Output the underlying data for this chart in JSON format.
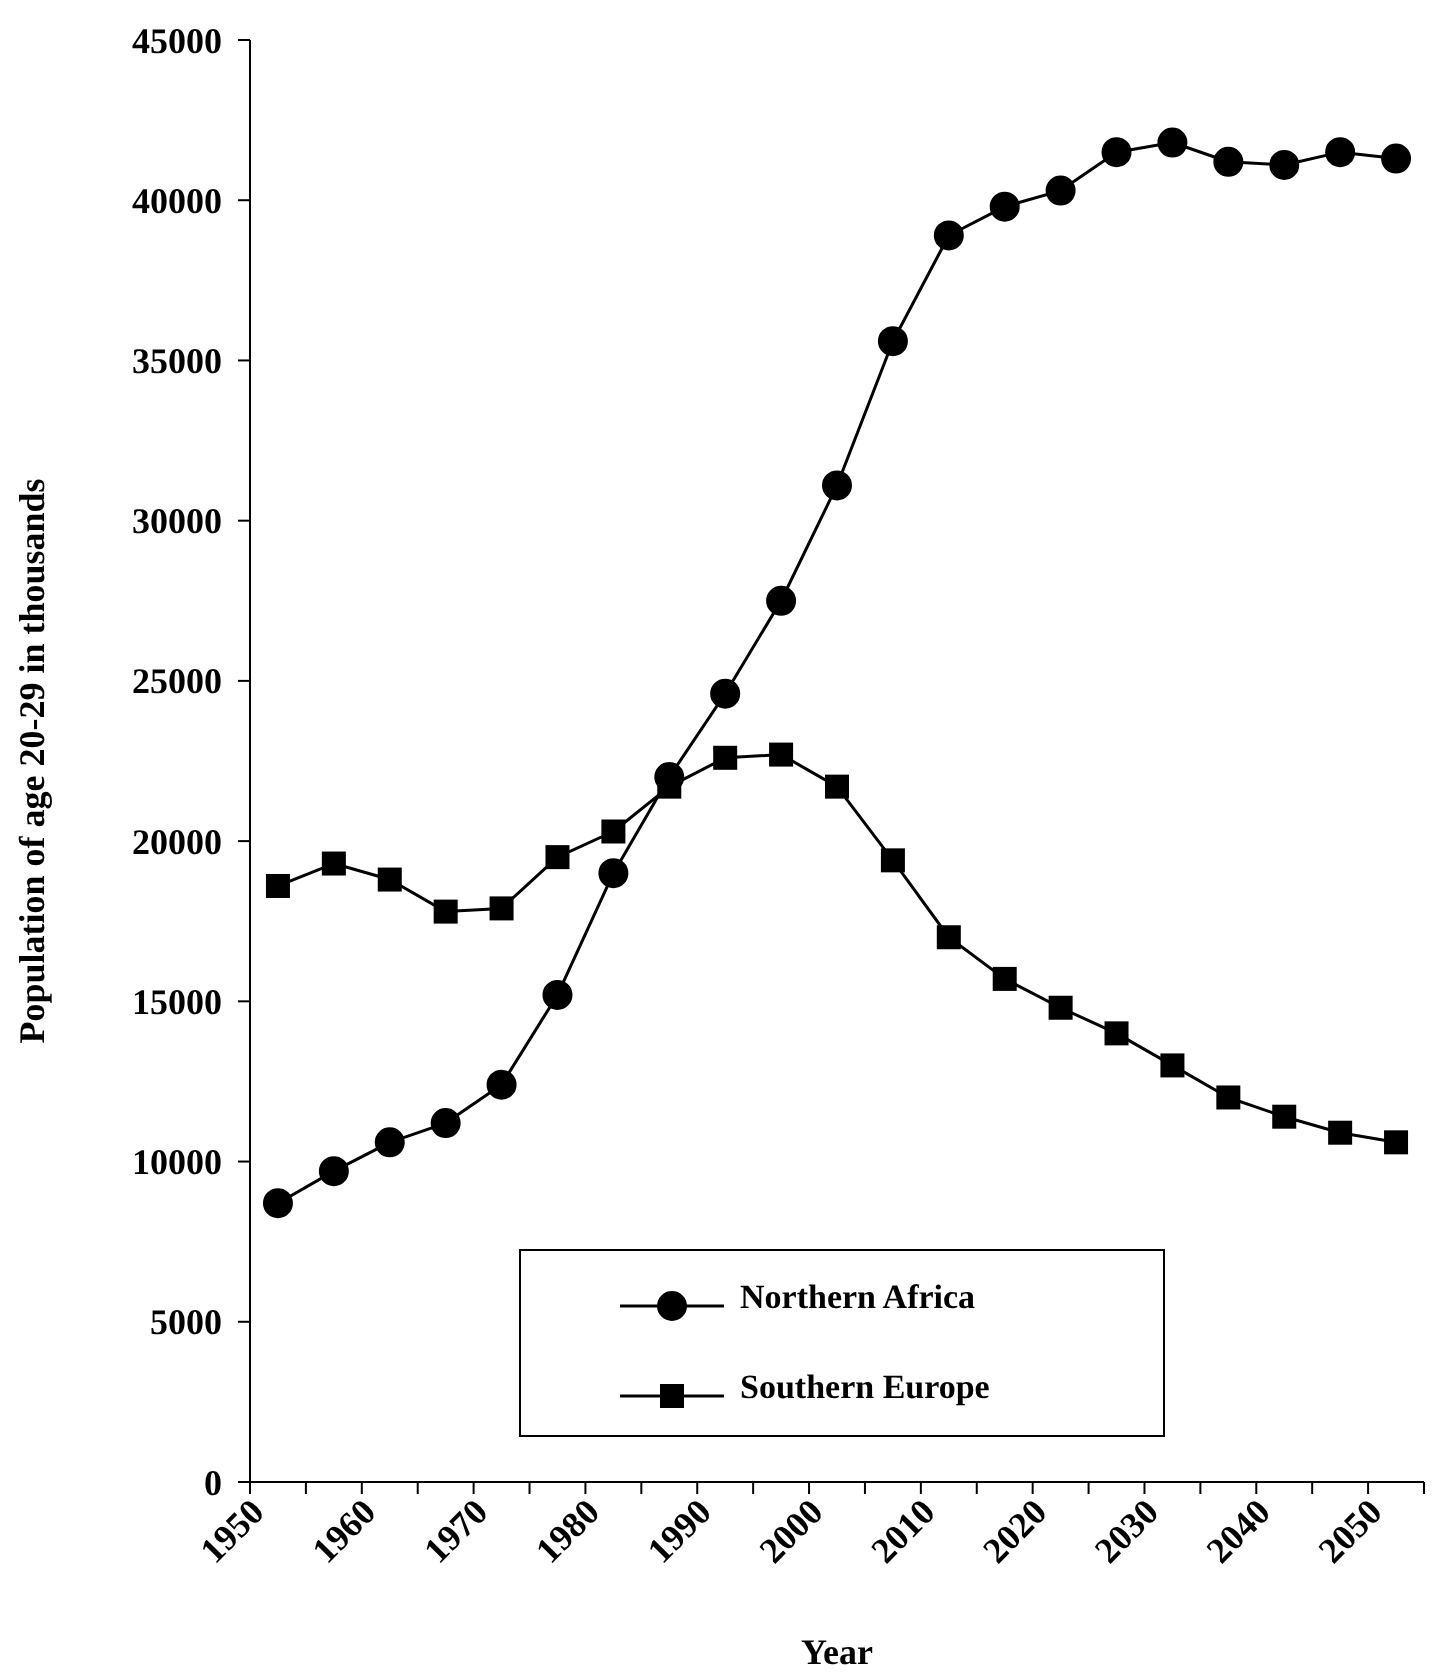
{
  "chart_data": {
    "type": "line",
    "xlabel": "Year",
    "ylabel": "Population of age 20-29 in thousands",
    "x": [
      1952.5,
      1957.5,
      1962.5,
      1967.5,
      1972.5,
      1977.5,
      1982.5,
      1987.5,
      1992.5,
      1997.5,
      2002.5,
      2007.5,
      2012.5,
      2017.5,
      2022.5,
      2027.5,
      2032.5,
      2037.5,
      2042.5,
      2047.5,
      2052.5
    ],
    "series": [
      {
        "name": "Northern Africa",
        "color": "#000000",
        "marker": "circle",
        "values": [
          8700,
          9700,
          10600,
          11200,
          12400,
          15200,
          19000,
          22000,
          24600,
          27500,
          31100,
          35600,
          38900,
          39800,
          40300,
          41500,
          41800,
          41200,
          41100,
          41500,
          41300
        ]
      },
      {
        "name": "Southern Europe",
        "color": "#000000",
        "marker": "square",
        "values": [
          18600,
          19300,
          18800,
          17800,
          17900,
          19500,
          20300,
          21700,
          22600,
          22700,
          21700,
          19400,
          17000,
          15700,
          14800,
          14000,
          13000,
          12000,
          11400,
          10900,
          10600
        ]
      }
    ],
    "xlim": [
      1950,
      2055
    ],
    "xticks": [
      1950,
      {
        "value": 1955,
        "label": null
      },
      1960,
      {
        "value": 1965,
        "label": null
      },
      1970,
      {
        "value": 1975,
        "label": null
      },
      1980,
      {
        "value": 1985,
        "label": null
      },
      1990,
      {
        "value": 1995,
        "label": null
      },
      2000,
      {
        "value": 2005,
        "label": null
      },
      2010,
      {
        "value": 2015,
        "label": null
      },
      2020,
      {
        "value": 2025,
        "label": null
      },
      2030,
      {
        "value": 2035,
        "label": null
      },
      2040,
      {
        "value": 2045,
        "label": null
      },
      2050,
      {
        "value": 2055,
        "label": null
      }
    ],
    "ylim": [
      0,
      45000
    ],
    "yticks": [
      0,
      5000,
      10000,
      15000,
      20000,
      25000,
      30000,
      35000,
      40000,
      45000
    ],
    "legend": "bottom",
    "grid": false,
    "line_style": "solid"
  }
}
